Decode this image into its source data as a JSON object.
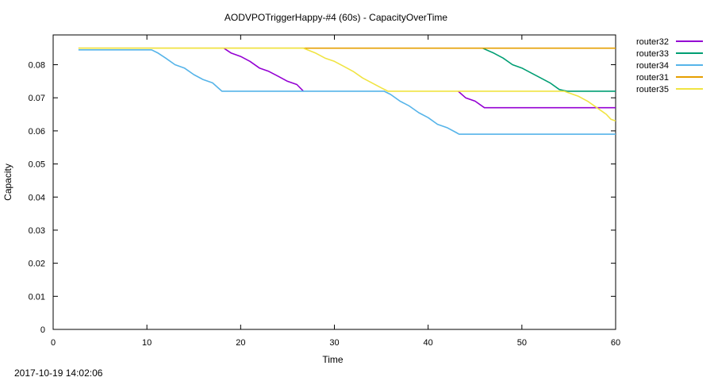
{
  "chart_data": {
    "type": "line",
    "title": "AODVPOTriggerHappy-#4 (60s) - CapacityOverTime",
    "xlabel": "Time",
    "ylabel": "Capacity",
    "xlim": [
      0,
      60
    ],
    "ylim": [
      0,
      0.089
    ],
    "xticks": [
      0,
      10,
      20,
      30,
      40,
      50,
      60
    ],
    "yticks": [
      0,
      0.01,
      0.02,
      0.03,
      0.04,
      0.05,
      0.06,
      0.07,
      0.08
    ],
    "ytick_labels": [
      "0",
      "0.01",
      "0.02",
      "0.03",
      "0.04",
      "0.05",
      "0.06",
      "0.07",
      "0.08"
    ],
    "grid": false,
    "legend_position": "outside-right",
    "series": [
      {
        "name": "router32",
        "color": "#9400d3",
        "segments": [
          [
            [
              18.2,
              0.085
            ],
            [
              19,
              0.0835
            ],
            [
              20,
              0.0825
            ],
            [
              21,
              0.081
            ],
            [
              22,
              0.079
            ],
            [
              23,
              0.078
            ],
            [
              24,
              0.0765
            ],
            [
              25,
              0.075
            ],
            [
              26,
              0.074
            ],
            [
              26.7,
              0.072
            ]
          ],
          [
            [
              43.2,
              0.072
            ],
            [
              44,
              0.07
            ],
            [
              45,
              0.069
            ],
            [
              46,
              0.067
            ],
            [
              60,
              0.067
            ]
          ]
        ]
      },
      {
        "name": "router33",
        "color": "#009e73",
        "segments": [
          [
            [
              45.8,
              0.085
            ],
            [
              47,
              0.0835
            ],
            [
              48,
              0.082
            ],
            [
              49,
              0.08
            ],
            [
              50,
              0.079
            ],
            [
              51,
              0.0775
            ],
            [
              52,
              0.076
            ],
            [
              53,
              0.0745
            ],
            [
              54,
              0.0725
            ],
            [
              54.8,
              0.072
            ],
            [
              60,
              0.072
            ]
          ]
        ]
      },
      {
        "name": "router34",
        "color": "#56b4e9",
        "segments": [
          [
            [
              2.7,
              0.0845
            ],
            [
              10.5,
              0.0845
            ],
            [
              11.2,
              0.0835
            ],
            [
              12,
              0.082
            ],
            [
              13,
              0.08
            ],
            [
              14,
              0.079
            ],
            [
              15,
              0.077
            ],
            [
              16,
              0.0755
            ],
            [
              17,
              0.0745
            ],
            [
              18,
              0.072
            ],
            [
              35.3,
              0.072
            ],
            [
              36,
              0.071
            ],
            [
              37,
              0.069
            ],
            [
              38,
              0.0675
            ],
            [
              39,
              0.0655
            ],
            [
              40,
              0.064
            ],
            [
              41,
              0.062
            ],
            [
              42,
              0.061
            ],
            [
              43,
              0.0595
            ],
            [
              43.3,
              0.059
            ],
            [
              60,
              0.059
            ]
          ]
        ]
      },
      {
        "name": "router31",
        "color": "#e69f00",
        "segments": [
          [
            [
              2.7,
              0.085
            ],
            [
              60,
              0.085
            ]
          ]
        ]
      },
      {
        "name": "router35",
        "color": "#f0e442",
        "segments": [
          [
            [
              2.7,
              0.085
            ],
            [
              26.7,
              0.085
            ],
            [
              28,
              0.0835
            ],
            [
              29,
              0.082
            ],
            [
              30,
              0.081
            ],
            [
              31,
              0.0795
            ],
            [
              32,
              0.078
            ],
            [
              33,
              0.076
            ],
            [
              34,
              0.0745
            ],
            [
              35,
              0.073
            ],
            [
              35.7,
              0.072
            ],
            [
              54.5,
              0.072
            ],
            [
              56,
              0.0705
            ],
            [
              57,
              0.069
            ],
            [
              58,
              0.067
            ],
            [
              59,
              0.065
            ],
            [
              59.5,
              0.0635
            ],
            [
              60,
              0.063
            ]
          ]
        ]
      }
    ]
  },
  "footer": {
    "timestamp": "2017-10-19 14:02:06"
  }
}
